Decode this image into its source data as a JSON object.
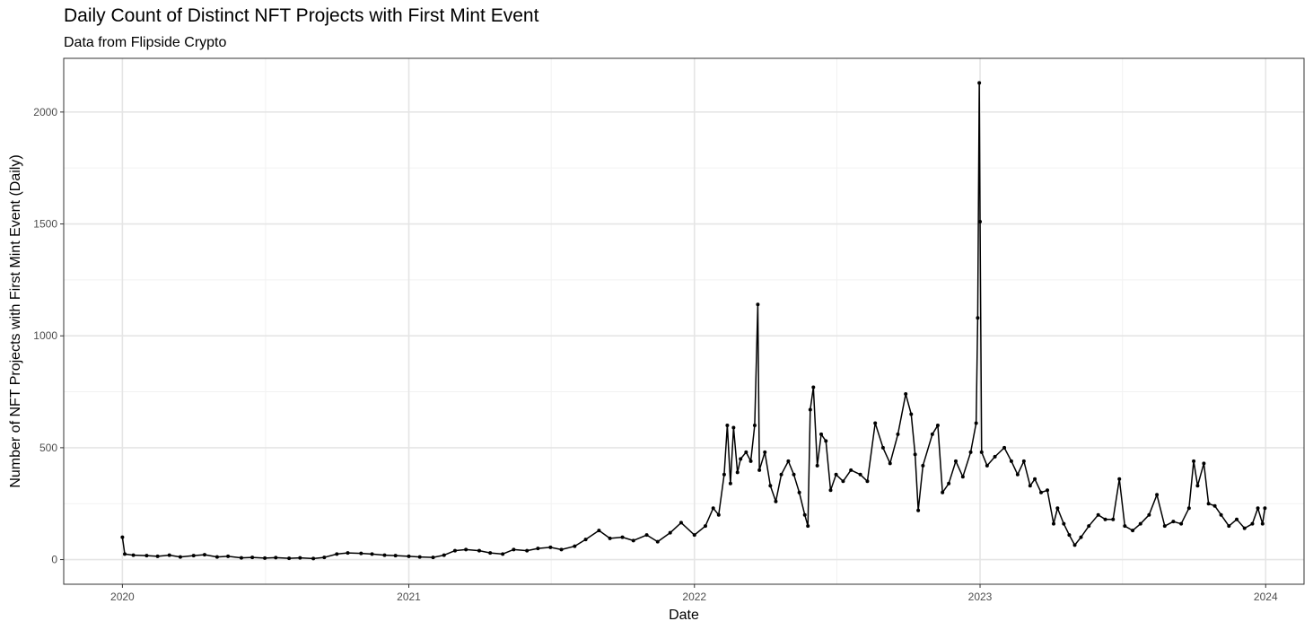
{
  "chart_data": {
    "type": "line",
    "title": "Daily Count of Distinct NFT Projects with First Mint Event",
    "subtitle": "Data from Flipside Crypto",
    "xlabel": "Date",
    "ylabel": "Number of NFT Projects with First Mint Event (Daily)",
    "x_ticks": [
      "2020",
      "2021",
      "2022",
      "2023",
      "2024"
    ],
    "y_ticks": [
      "0",
      "500",
      "1000",
      "1500",
      "2000"
    ],
    "xlim": [
      "2019-10-18",
      "2024-02-19"
    ],
    "ylim": [
      -110,
      2240
    ],
    "grid": true,
    "legend": "none",
    "line_color": "#000000",
    "series": [
      {
        "values_note_x": "date",
        "points": [
          [
            "2020-01-01",
            100
          ],
          [
            "2020-01-04",
            25
          ],
          [
            "2020-01-15",
            20
          ],
          [
            "2020-02-01",
            18
          ],
          [
            "2020-02-15",
            15
          ],
          [
            "2020-03-01",
            20
          ],
          [
            "2020-03-15",
            12
          ],
          [
            "2020-04-01",
            18
          ],
          [
            "2020-04-15",
            22
          ],
          [
            "2020-05-01",
            12
          ],
          [
            "2020-05-15",
            15
          ],
          [
            "2020-06-01",
            8
          ],
          [
            "2020-06-15",
            10
          ],
          [
            "2020-07-01",
            7
          ],
          [
            "2020-07-15",
            9
          ],
          [
            "2020-08-01",
            6
          ],
          [
            "2020-08-15",
            8
          ],
          [
            "2020-09-01",
            5
          ],
          [
            "2020-09-15",
            10
          ],
          [
            "2020-10-01",
            25
          ],
          [
            "2020-10-15",
            30
          ],
          [
            "2020-11-01",
            28
          ],
          [
            "2020-11-15",
            25
          ],
          [
            "2020-12-01",
            20
          ],
          [
            "2020-12-15",
            18
          ],
          [
            "2021-01-01",
            15
          ],
          [
            "2021-01-15",
            12
          ],
          [
            "2021-02-01",
            10
          ],
          [
            "2021-02-15",
            20
          ],
          [
            "2021-03-01",
            40
          ],
          [
            "2021-03-15",
            45
          ],
          [
            "2021-04-01",
            40
          ],
          [
            "2021-04-15",
            30
          ],
          [
            "2021-05-01",
            25
          ],
          [
            "2021-05-15",
            45
          ],
          [
            "2021-06-01",
            40
          ],
          [
            "2021-06-15",
            50
          ],
          [
            "2021-07-01",
            55
          ],
          [
            "2021-07-15",
            45
          ],
          [
            "2021-08-01",
            60
          ],
          [
            "2021-08-15",
            90
          ],
          [
            "2021-09-01",
            130
          ],
          [
            "2021-09-15",
            95
          ],
          [
            "2021-10-01",
            100
          ],
          [
            "2021-10-15",
            85
          ],
          [
            "2021-11-01",
            110
          ],
          [
            "2021-11-15",
            80
          ],
          [
            "2021-12-01",
            120
          ],
          [
            "2021-12-15",
            165
          ],
          [
            "2022-01-01",
            110
          ],
          [
            "2022-01-15",
            150
          ],
          [
            "2022-01-25",
            230
          ],
          [
            "2022-02-01",
            200
          ],
          [
            "2022-02-08",
            380
          ],
          [
            "2022-02-12",
            600
          ],
          [
            "2022-02-16",
            340
          ],
          [
            "2022-02-20",
            590
          ],
          [
            "2022-02-25",
            390
          ],
          [
            "2022-03-01",
            450
          ],
          [
            "2022-03-08",
            480
          ],
          [
            "2022-03-14",
            440
          ],
          [
            "2022-03-19",
            600
          ],
          [
            "2022-03-23",
            1140
          ],
          [
            "2022-03-25",
            400
          ],
          [
            "2022-04-01",
            480
          ],
          [
            "2022-04-08",
            330
          ],
          [
            "2022-04-15",
            260
          ],
          [
            "2022-04-22",
            380
          ],
          [
            "2022-05-01",
            440
          ],
          [
            "2022-05-08",
            380
          ],
          [
            "2022-05-15",
            300
          ],
          [
            "2022-05-22",
            200
          ],
          [
            "2022-05-26",
            150
          ],
          [
            "2022-05-29",
            670
          ],
          [
            "2022-06-02",
            770
          ],
          [
            "2022-06-07",
            420
          ],
          [
            "2022-06-12",
            560
          ],
          [
            "2022-06-18",
            530
          ],
          [
            "2022-06-24",
            310
          ],
          [
            "2022-07-01",
            380
          ],
          [
            "2022-07-10",
            350
          ],
          [
            "2022-07-20",
            400
          ],
          [
            "2022-08-01",
            380
          ],
          [
            "2022-08-10",
            350
          ],
          [
            "2022-08-20",
            610
          ],
          [
            "2022-08-30",
            500
          ],
          [
            "2022-09-08",
            430
          ],
          [
            "2022-09-18",
            560
          ],
          [
            "2022-09-28",
            740
          ],
          [
            "2022-10-05",
            650
          ],
          [
            "2022-10-10",
            470
          ],
          [
            "2022-10-14",
            220
          ],
          [
            "2022-10-20",
            420
          ],
          [
            "2022-11-01",
            560
          ],
          [
            "2022-11-08",
            600
          ],
          [
            "2022-11-14",
            300
          ],
          [
            "2022-11-22",
            340
          ],
          [
            "2022-12-01",
            440
          ],
          [
            "2022-12-10",
            370
          ],
          [
            "2022-12-20",
            480
          ],
          [
            "2022-12-27",
            610
          ],
          [
            "2022-12-29",
            1080
          ],
          [
            "2022-12-31",
            2130
          ],
          [
            "2023-01-01",
            1510
          ],
          [
            "2023-01-03",
            480
          ],
          [
            "2023-01-10",
            420
          ],
          [
            "2023-01-20",
            460
          ],
          [
            "2023-02-01",
            500
          ],
          [
            "2023-02-10",
            440
          ],
          [
            "2023-02-18",
            380
          ],
          [
            "2023-02-26",
            440
          ],
          [
            "2023-03-06",
            330
          ],
          [
            "2023-03-12",
            360
          ],
          [
            "2023-03-20",
            300
          ],
          [
            "2023-03-28",
            310
          ],
          [
            "2023-04-05",
            160
          ],
          [
            "2023-04-10",
            230
          ],
          [
            "2023-04-18",
            160
          ],
          [
            "2023-04-25",
            110
          ],
          [
            "2023-05-02",
            65
          ],
          [
            "2023-05-10",
            100
          ],
          [
            "2023-05-20",
            150
          ],
          [
            "2023-06-01",
            200
          ],
          [
            "2023-06-10",
            180
          ],
          [
            "2023-06-20",
            180
          ],
          [
            "2023-06-28",
            360
          ],
          [
            "2023-07-05",
            150
          ],
          [
            "2023-07-15",
            130
          ],
          [
            "2023-07-25",
            160
          ],
          [
            "2023-08-05",
            200
          ],
          [
            "2023-08-15",
            290
          ],
          [
            "2023-08-25",
            150
          ],
          [
            "2023-09-05",
            170
          ],
          [
            "2023-09-15",
            160
          ],
          [
            "2023-09-25",
            230
          ],
          [
            "2023-10-01",
            440
          ],
          [
            "2023-10-06",
            330
          ],
          [
            "2023-10-14",
            430
          ],
          [
            "2023-10-20",
            250
          ],
          [
            "2023-10-28",
            240
          ],
          [
            "2023-11-05",
            200
          ],
          [
            "2023-11-15",
            150
          ],
          [
            "2023-11-25",
            180
          ],
          [
            "2023-12-05",
            140
          ],
          [
            "2023-12-15",
            160
          ],
          [
            "2023-12-22",
            230
          ],
          [
            "2023-12-28",
            160
          ],
          [
            "2023-12-31",
            230
          ]
        ]
      }
    ]
  }
}
